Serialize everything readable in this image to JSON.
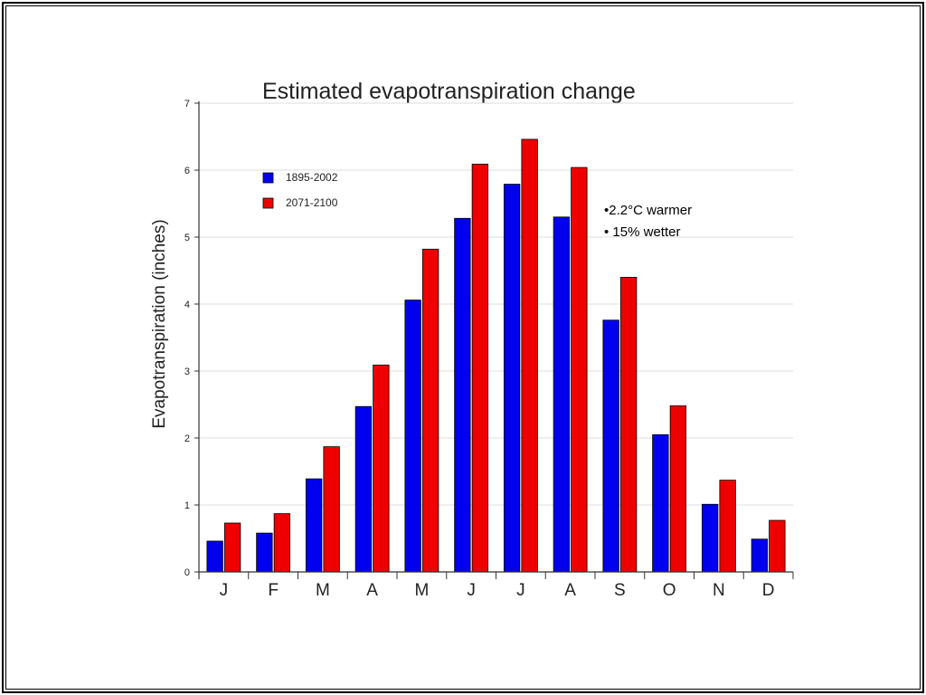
{
  "chart_data": {
    "type": "bar",
    "title": "Estimated evapotranspiration change",
    "xlabel": "",
    "ylabel": "Evapotranspiration (inches)",
    "ylim": [
      0,
      7
    ],
    "yticks": [
      "0",
      "1",
      "2",
      "3",
      "4",
      "5",
      "6",
      "7"
    ],
    "grid": true,
    "legend_position": "top-left",
    "categories": [
      "J",
      "F",
      "M",
      "A",
      "M",
      "J",
      "J",
      "A",
      "S",
      "O",
      "N",
      "D"
    ],
    "series": [
      {
        "name": "1895-2002",
        "color": "#0000ee",
        "values": [
          0.46,
          0.58,
          1.39,
          2.47,
          4.06,
          5.28,
          5.79,
          5.3,
          3.76,
          2.05,
          1.01,
          0.49
        ]
      },
      {
        "name": "2071-2100",
        "color": "#ee0000",
        "values": [
          0.73,
          0.87,
          1.87,
          3.09,
          4.82,
          6.09,
          6.46,
          6.04,
          4.4,
          2.48,
          1.37,
          0.77
        ]
      }
    ],
    "annotations": [
      "•2.2°C warmer",
      "• 15% wetter"
    ]
  }
}
